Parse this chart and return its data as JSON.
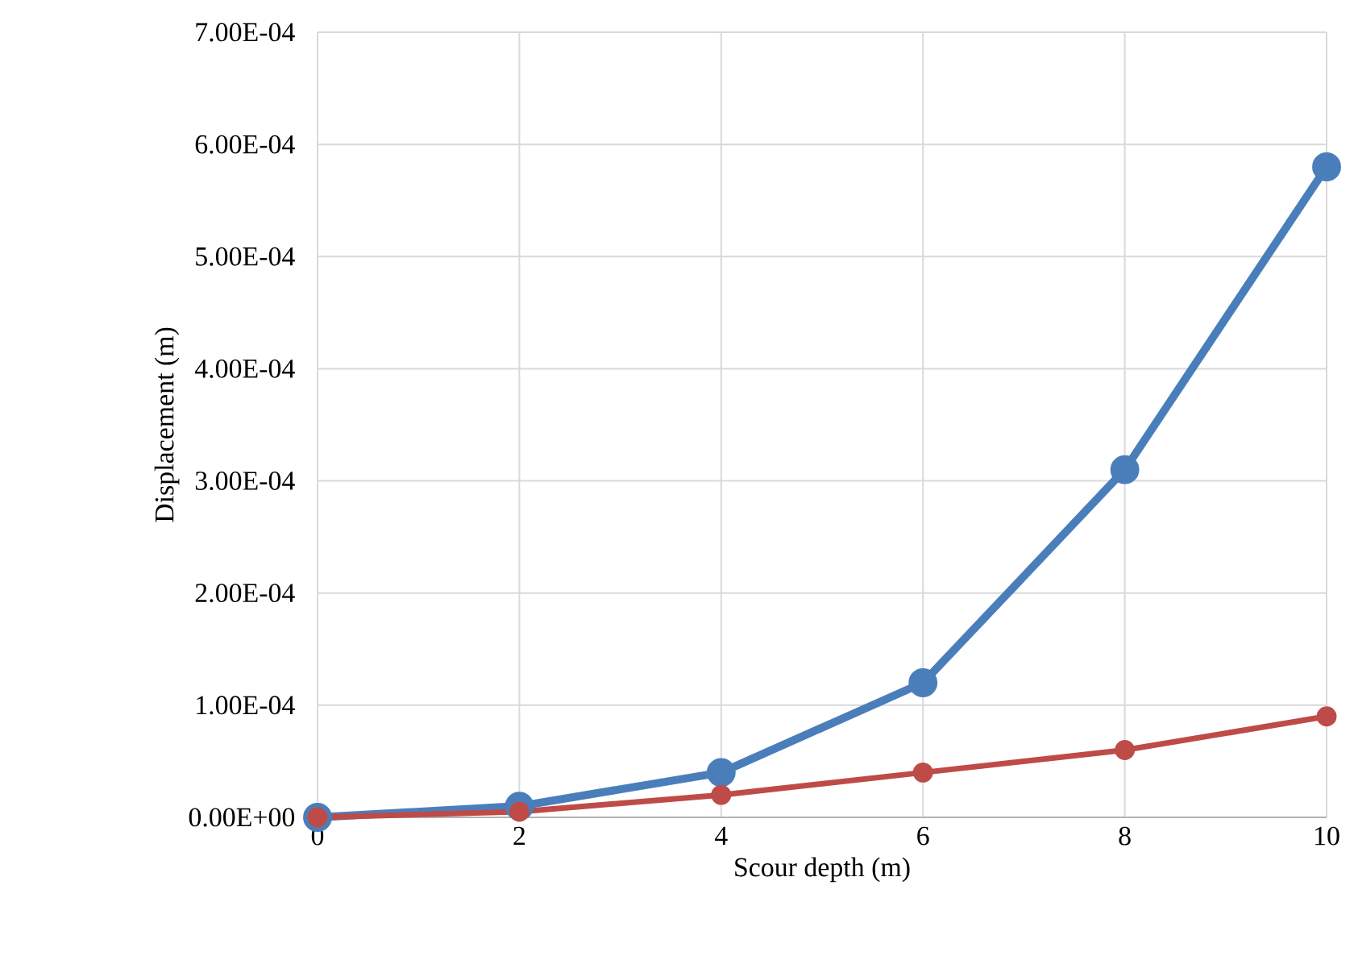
{
  "chart_data": {
    "type": "line",
    "xlabel": "Scour depth (m)",
    "ylabel": "Displacement (m)",
    "x": [
      0,
      2,
      4,
      6,
      8,
      10
    ],
    "series": [
      {
        "color": "#4a7ebb",
        "values": [
          0,
          1e-05,
          4e-05,
          0.00012,
          0.00031,
          0.00058
        ]
      },
      {
        "color": "#be4b48",
        "values": [
          0,
          5e-06,
          2e-05,
          4e-05,
          6e-05,
          9e-05
        ]
      }
    ],
    "xlim": [
      0,
      10
    ],
    "xticks": [
      0,
      2,
      4,
      6,
      8,
      10
    ],
    "ylim": [
      0,
      0.0007
    ],
    "yticks": [
      {
        "value": 0,
        "label": "0.00E+00"
      },
      {
        "value": 0.0001,
        "label": "1.00E-04"
      },
      {
        "value": 0.0002,
        "label": "2.00E-04"
      },
      {
        "value": 0.0003,
        "label": "3.00E-04"
      },
      {
        "value": 0.0004,
        "label": "4.00E-04"
      },
      {
        "value": 0.0005,
        "label": "5.00E-04"
      },
      {
        "value": 0.0006,
        "label": "6.00E-04"
      },
      {
        "value": 0.0007,
        "label": "7.00E-04"
      }
    ],
    "grid": true,
    "marker": "circle",
    "line_style": "solid"
  }
}
